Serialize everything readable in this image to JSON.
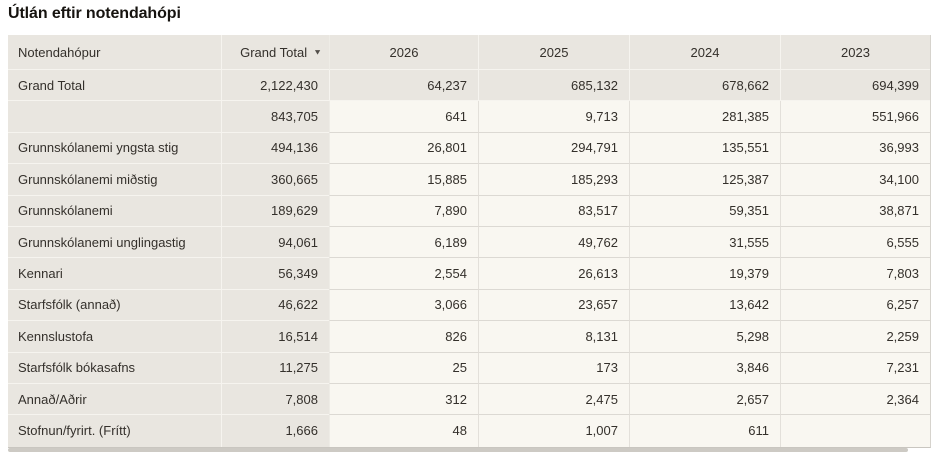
{
  "title": "Útlán eftir notendahópi",
  "table": {
    "columns": [
      {
        "label": "Notendahópur"
      },
      {
        "label": "Grand Total",
        "sort": "descending",
        "sort_icon": "▼"
      },
      {
        "label": "2026"
      },
      {
        "label": "2025"
      },
      {
        "label": "2024"
      },
      {
        "label": "2023"
      }
    ],
    "rows": [
      {
        "label": "Grand Total",
        "total": true,
        "values": [
          "2,122,430",
          "64,237",
          "685,132",
          "678,662",
          "694,399"
        ]
      },
      {
        "label": "",
        "values": [
          "843,705",
          "641",
          "9,713",
          "281,385",
          "551,966"
        ]
      },
      {
        "label": "Grunnskólanemi yngsta stig",
        "values": [
          "494,136",
          "26,801",
          "294,791",
          "135,551",
          "36,993"
        ]
      },
      {
        "label": "Grunnskólanemi miðstig",
        "values": [
          "360,665",
          "15,885",
          "185,293",
          "125,387",
          "34,100"
        ]
      },
      {
        "label": "Grunnskólanemi",
        "values": [
          "189,629",
          "7,890",
          "83,517",
          "59,351",
          "38,871"
        ]
      },
      {
        "label": "Grunnskólanemi unglingastig",
        "values": [
          "94,061",
          "6,189",
          "49,762",
          "31,555",
          "6,555"
        ]
      },
      {
        "label": "Kennari",
        "values": [
          "56,349",
          "2,554",
          "26,613",
          "19,379",
          "7,803"
        ]
      },
      {
        "label": "Starfsfólk (annað)",
        "values": [
          "46,622",
          "3,066",
          "23,657",
          "13,642",
          "6,257"
        ]
      },
      {
        "label": "Kennslustofa",
        "values": [
          "16,514",
          "826",
          "8,131",
          "5,298",
          "2,259"
        ]
      },
      {
        "label": "Starfsfólk bókasafns",
        "values": [
          "11,275",
          "25",
          "173",
          "3,846",
          "7,231"
        ]
      },
      {
        "label": "Annað/Aðrir",
        "values": [
          "7,808",
          "312",
          "2,475",
          "2,657",
          "2,364"
        ]
      },
      {
        "label": "Stofnun/fyrirt. (Frítt)",
        "values": [
          "1,666",
          "48",
          "1,007",
          "611",
          ""
        ]
      }
    ]
  },
  "colors": {
    "pinned_gray": "#e9e6e0",
    "data_cream": "#f9f7f1",
    "grid_cream": "#dcd9d3",
    "grid_gray": "#f6f4ef",
    "text": "#34302b",
    "title_text": "#16130f",
    "scrollbar_thumb": "#cdcac4"
  }
}
